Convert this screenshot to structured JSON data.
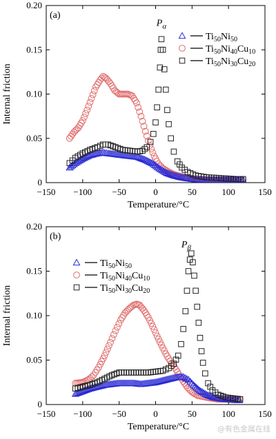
{
  "watermark": "@有色金属在线",
  "chart_data": [
    {
      "type": "scatter",
      "panel_label": "(a)",
      "peak_label": {
        "main": "P",
        "sub": "α",
        "x": 8,
        "y": 0.18
      },
      "xlabel": "Temperature/°C",
      "ylabel": "Internal friction",
      "xlim": [
        -150,
        150
      ],
      "ylim": [
        0,
        0.2
      ],
      "xticks": [
        -150,
        -100,
        -50,
        0,
        50,
        100,
        150
      ],
      "yticks": [
        0,
        0.05,
        0.1,
        0.15,
        0.2
      ],
      "ytick_labels": [
        "0",
        "0.05",
        "0.10",
        "0.15",
        "0.20"
      ],
      "legend_position": "upper-right",
      "series": [
        {
          "name": "Ti50Ni50",
          "name_parts": [
            {
              "t": "Ti"
            },
            {
              "t": "50",
              "sub": true
            },
            {
              "t": "Ni"
            },
            {
              "t": "50",
              "sub": true
            }
          ],
          "marker": "triangle",
          "color": "#2b2bd4",
          "points": [
            [
              -118,
              0.017
            ],
            [
              -110,
              0.022
            ],
            [
              -100,
              0.027
            ],
            [
              -90,
              0.031
            ],
            [
              -80,
              0.033
            ],
            [
              -72,
              0.034
            ],
            [
              -65,
              0.033
            ],
            [
              -55,
              0.032
            ],
            [
              -45,
              0.031
            ],
            [
              -35,
              0.03
            ],
            [
              -25,
              0.029
            ],
            [
              -15,
              0.026
            ],
            [
              -5,
              0.022
            ],
            [
              5,
              0.016
            ],
            [
              15,
              0.011
            ],
            [
              25,
              0.008
            ],
            [
              35,
              0.006
            ],
            [
              50,
              0.004
            ],
            [
              70,
              0.003
            ],
            [
              90,
              0.003
            ],
            [
              105,
              0.003
            ],
            [
              120,
              0.003
            ]
          ]
        },
        {
          "name": "Ti50Ni40Cu10",
          "name_parts": [
            {
              "t": "Ti"
            },
            {
              "t": "50",
              "sub": true
            },
            {
              "t": "Ni"
            },
            {
              "t": "40",
              "sub": true
            },
            {
              "t": "Cu"
            },
            {
              "t": "10",
              "sub": true
            }
          ],
          "marker": "circle",
          "color": "#e06c6c",
          "points": [
            [
              -118,
              0.05
            ],
            [
              -112,
              0.057
            ],
            [
              -106,
              0.062
            ],
            [
              -100,
              0.07
            ],
            [
              -94,
              0.082
            ],
            [
              -88,
              0.095
            ],
            [
              -82,
              0.108
            ],
            [
              -76,
              0.116
            ],
            [
              -72,
              0.12
            ],
            [
              -68,
              0.118
            ],
            [
              -62,
              0.112
            ],
            [
              -56,
              0.104
            ],
            [
              -50,
              0.1
            ],
            [
              -44,
              0.1
            ],
            [
              -38,
              0.1
            ],
            [
              -32,
              0.098
            ],
            [
              -26,
              0.09
            ],
            [
              -20,
              0.075
            ],
            [
              -14,
              0.058
            ],
            [
              -8,
              0.042
            ],
            [
              -2,
              0.03
            ],
            [
              4,
              0.021
            ],
            [
              10,
              0.016
            ],
            [
              18,
              0.012
            ],
            [
              26,
              0.009
            ],
            [
              35,
              0.007
            ],
            [
              45,
              0.005
            ],
            [
              60,
              0.004
            ],
            [
              80,
              0.003
            ],
            [
              100,
              0.003
            ],
            [
              120,
              0.003
            ]
          ]
        },
        {
          "name": "Ti50Ni30Cu20",
          "name_parts": [
            {
              "t": "Ti"
            },
            {
              "t": "50",
              "sub": true
            },
            {
              "t": "Ni"
            },
            {
              "t": "30",
              "sub": true
            },
            {
              "t": "Cu"
            },
            {
              "t": "20",
              "sub": true
            }
          ],
          "marker": "square",
          "color": "#222222",
          "points": [
            [
              -118,
              0.022
            ],
            [
              -110,
              0.028
            ],
            [
              -100,
              0.033
            ],
            [
              -90,
              0.037
            ],
            [
              -80,
              0.04
            ],
            [
              -72,
              0.043
            ],
            [
              -65,
              0.043
            ],
            [
              -55,
              0.04
            ],
            [
              -45,
              0.037
            ],
            [
              -35,
              0.036
            ],
            [
              -25,
              0.035
            ],
            [
              -18,
              0.036
            ],
            [
              -12,
              0.04
            ],
            [
              -7,
              0.046
            ],
            [
              -3,
              0.055
            ],
            [
              0,
              0.068
            ],
            [
              2,
              0.085
            ],
            [
              4,
              0.105
            ],
            [
              6,
              0.13
            ],
            [
              7,
              0.15
            ],
            [
              8,
              0.162
            ],
            [
              10,
              0.15
            ],
            [
              12,
              0.128
            ],
            [
              14,
              0.105
            ],
            [
              16,
              0.082
            ],
            [
              18,
              0.066
            ],
            [
              21,
              0.05
            ],
            [
              25,
              0.035
            ],
            [
              30,
              0.024
            ],
            [
              36,
              0.017
            ],
            [
              44,
              0.012
            ],
            [
              55,
              0.008
            ],
            [
              70,
              0.006
            ],
            [
              90,
              0.005
            ],
            [
              110,
              0.004
            ],
            [
              120,
              0.004
            ]
          ]
        }
      ]
    },
    {
      "type": "scatter",
      "panel_label": "(b)",
      "peak_label": {
        "main": "P",
        "sub": "β",
        "x": 42,
        "y": 0.18
      },
      "xlabel": "Temperature/°C",
      "ylabel": "Internal friction",
      "xlim": [
        -150,
        150
      ],
      "ylim": [
        0,
        0.2
      ],
      "xticks": [
        -150,
        -100,
        -50,
        0,
        50,
        100,
        150
      ],
      "yticks": [
        0,
        0.05,
        0.1,
        0.15,
        0.2
      ],
      "ytick_labels": [
        "0",
        "0.05",
        "0.10",
        "0.15",
        "0.20"
      ],
      "legend_position": "center-left",
      "series": [
        {
          "name": "Ti50Ni50",
          "name_parts": [
            {
              "t": "Ti"
            },
            {
              "t": "50",
              "sub": true
            },
            {
              "t": "Ni"
            },
            {
              "t": "50",
              "sub": true
            }
          ],
          "marker": "triangle",
          "color": "#2b2bd4",
          "points": [
            [
              -110,
              0.012
            ],
            [
              -100,
              0.015
            ],
            [
              -90,
              0.018
            ],
            [
              -80,
              0.02
            ],
            [
              -70,
              0.022
            ],
            [
              -60,
              0.023
            ],
            [
              -50,
              0.024
            ],
            [
              -40,
              0.024
            ],
            [
              -30,
              0.024
            ],
            [
              -20,
              0.023
            ],
            [
              -10,
              0.024
            ],
            [
              0,
              0.025
            ],
            [
              10,
              0.027
            ],
            [
              20,
              0.029
            ],
            [
              30,
              0.031
            ],
            [
              38,
              0.031
            ],
            [
              45,
              0.028
            ],
            [
              52,
              0.022
            ],
            [
              60,
              0.016
            ],
            [
              70,
              0.011
            ],
            [
              80,
              0.008
            ],
            [
              95,
              0.006
            ],
            [
              110,
              0.005
            ],
            [
              115,
              0.005
            ]
          ]
        },
        {
          "name": "Ti50Ni40Cu10",
          "name_parts": [
            {
              "t": "Ti"
            },
            {
              "t": "50",
              "sub": true
            },
            {
              "t": "Ni"
            },
            {
              "t": "40",
              "sub": true
            },
            {
              "t": "Cu"
            },
            {
              "t": "10",
              "sub": true
            }
          ],
          "marker": "circle",
          "color": "#e06c6c",
          "points": [
            [
              -110,
              0.024
            ],
            [
              -100,
              0.025
            ],
            [
              -92,
              0.028
            ],
            [
              -85,
              0.033
            ],
            [
              -78,
              0.042
            ],
            [
              -70,
              0.055
            ],
            [
              -62,
              0.07
            ],
            [
              -55,
              0.083
            ],
            [
              -48,
              0.095
            ],
            [
              -42,
              0.103
            ],
            [
              -36,
              0.108
            ],
            [
              -30,
              0.112
            ],
            [
              -26,
              0.113
            ],
            [
              -22,
              0.112
            ],
            [
              -16,
              0.106
            ],
            [
              -10,
              0.098
            ],
            [
              -4,
              0.088
            ],
            [
              2,
              0.077
            ],
            [
              8,
              0.067
            ],
            [
              14,
              0.057
            ],
            [
              20,
              0.049
            ],
            [
              26,
              0.042
            ],
            [
              32,
              0.034
            ],
            [
              38,
              0.026
            ],
            [
              44,
              0.019
            ],
            [
              50,
              0.014
            ],
            [
              58,
              0.01
            ],
            [
              70,
              0.008
            ],
            [
              85,
              0.006
            ],
            [
              100,
              0.006
            ],
            [
              115,
              0.006
            ]
          ]
        },
        {
          "name": "Ti50Ni30Cu20",
          "name_parts": [
            {
              "t": "Ti"
            },
            {
              "t": "50",
              "sub": true
            },
            {
              "t": "Ni"
            },
            {
              "t": "30",
              "sub": true
            },
            {
              "t": "Cu"
            },
            {
              "t": "20",
              "sub": true
            }
          ],
          "marker": "square",
          "color": "#222222",
          "points": [
            [
              -110,
              0.018
            ],
            [
              -100,
              0.02
            ],
            [
              -90,
              0.022
            ],
            [
              -80,
              0.025
            ],
            [
              -70,
              0.029
            ],
            [
              -60,
              0.033
            ],
            [
              -50,
              0.036
            ],
            [
              -40,
              0.036
            ],
            [
              -30,
              0.036
            ],
            [
              -20,
              0.036
            ],
            [
              -10,
              0.036
            ],
            [
              0,
              0.037
            ],
            [
              10,
              0.038
            ],
            [
              18,
              0.041
            ],
            [
              25,
              0.046
            ],
            [
              31,
              0.055
            ],
            [
              35,
              0.068
            ],
            [
              38,
              0.085
            ],
            [
              41,
              0.105
            ],
            [
              43,
              0.128
            ],
            [
              45,
              0.15
            ],
            [
              47,
              0.163
            ],
            [
              49,
              0.17
            ],
            [
              51,
              0.16
            ],
            [
              53,
              0.145
            ],
            [
              55,
              0.128
            ],
            [
              57,
              0.11
            ],
            [
              59,
              0.092
            ],
            [
              61,
              0.075
            ],
            [
              63,
              0.06
            ],
            [
              65,
              0.047
            ],
            [
              68,
              0.035
            ],
            [
              72,
              0.024
            ],
            [
              78,
              0.016
            ],
            [
              86,
              0.011
            ],
            [
              96,
              0.008
            ],
            [
              106,
              0.007
            ],
            [
              116,
              0.006
            ]
          ]
        }
      ]
    }
  ]
}
